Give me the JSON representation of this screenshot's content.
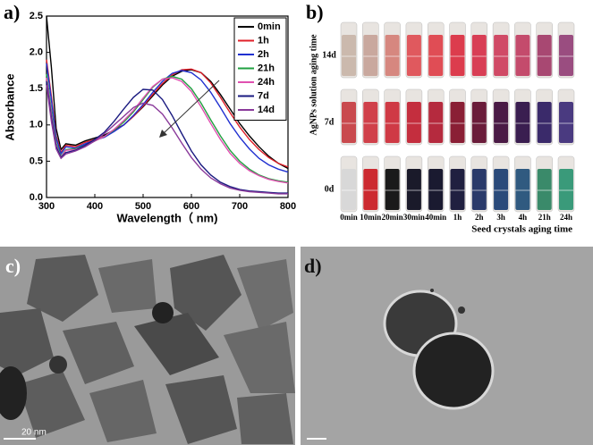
{
  "chart_data": {
    "type": "line",
    "panel_label": "a)",
    "xlabel": "Wavelength（ nm)",
    "ylabel": "Absorbance",
    "x": [
      300,
      310,
      320,
      330,
      340,
      360,
      380,
      400,
      420,
      440,
      460,
      480,
      500,
      520,
      540,
      560,
      580,
      600,
      620,
      640,
      660,
      680,
      700,
      720,
      740,
      760,
      780,
      800
    ],
    "xlim": [
      300,
      800
    ],
    "xticks": [
      300,
      400,
      500,
      600,
      700,
      800
    ],
    "ylim": [
      0,
      2.5
    ],
    "yticks": [
      {
        "value": 0,
        "label": "0.0"
      },
      0.5,
      {
        "value": 1,
        "label": "1.0"
      },
      1.5,
      {
        "value": 2,
        "label": "2.0"
      },
      2.5
    ],
    "legend": "upper right",
    "series": [
      {
        "name": "0min",
        "color": "#000000",
        "values": [
          2.5,
          1.8,
          0.95,
          0.66,
          0.74,
          0.72,
          0.78,
          0.82,
          0.86,
          0.93,
          1.0,
          1.12,
          1.25,
          1.4,
          1.55,
          1.67,
          1.74,
          1.76,
          1.72,
          1.6,
          1.42,
          1.22,
          1.02,
          0.85,
          0.7,
          0.57,
          0.47,
          0.4
        ]
      },
      {
        "name": "1h",
        "color": "#e0202a",
        "values": [
          1.9,
          1.4,
          0.85,
          0.62,
          0.72,
          0.7,
          0.76,
          0.8,
          0.84,
          0.92,
          1.0,
          1.12,
          1.26,
          1.42,
          1.57,
          1.69,
          1.76,
          1.77,
          1.72,
          1.58,
          1.38,
          1.17,
          0.97,
          0.8,
          0.66,
          0.55,
          0.47,
          0.42
        ]
      },
      {
        "name": "2h",
        "color": "#2030d0",
        "values": [
          1.85,
          1.35,
          0.82,
          0.6,
          0.7,
          0.68,
          0.74,
          0.79,
          0.83,
          0.91,
          1.0,
          1.13,
          1.28,
          1.45,
          1.6,
          1.71,
          1.75,
          1.72,
          1.62,
          1.45,
          1.24,
          1.02,
          0.83,
          0.67,
          0.54,
          0.45,
          0.39,
          0.35
        ]
      },
      {
        "name": "21h",
        "color": "#20a040",
        "values": [
          1.7,
          1.2,
          0.75,
          0.56,
          0.66,
          0.67,
          0.72,
          0.78,
          0.84,
          0.93,
          1.04,
          1.18,
          1.35,
          1.52,
          1.63,
          1.67,
          1.63,
          1.5,
          1.3,
          1.07,
          0.85,
          0.65,
          0.5,
          0.39,
          0.31,
          0.26,
          0.23,
          0.21
        ]
      },
      {
        "name": "24h",
        "color": "#e050b0",
        "values": [
          1.65,
          1.15,
          0.72,
          0.55,
          0.65,
          0.66,
          0.71,
          0.78,
          0.84,
          0.94,
          1.06,
          1.2,
          1.37,
          1.53,
          1.63,
          1.65,
          1.6,
          1.46,
          1.25,
          1.02,
          0.8,
          0.61,
          0.47,
          0.37,
          0.3,
          0.25,
          0.22,
          0.2
        ]
      },
      {
        "name": "7d",
        "color": "#1a1a80",
        "values": [
          1.6,
          1.1,
          0.7,
          0.55,
          0.62,
          0.65,
          0.72,
          0.8,
          0.9,
          1.05,
          1.22,
          1.38,
          1.49,
          1.48,
          1.35,
          1.13,
          0.88,
          0.64,
          0.45,
          0.31,
          0.21,
          0.15,
          0.11,
          0.09,
          0.08,
          0.07,
          0.06,
          0.06
        ]
      },
      {
        "name": "14d",
        "color": "#8a3a9a",
        "values": [
          1.55,
          1.05,
          0.67,
          0.54,
          0.6,
          0.64,
          0.7,
          0.78,
          0.88,
          1.0,
          1.12,
          1.24,
          1.3,
          1.27,
          1.15,
          0.96,
          0.75,
          0.55,
          0.39,
          0.27,
          0.19,
          0.13,
          0.1,
          0.08,
          0.07,
          0.06,
          0.05,
          0.05
        ]
      }
    ]
  },
  "panel_b": {
    "label": "b)",
    "y_title": "AgNPs solution aging time",
    "x_title": "Seed crystals aging time",
    "rows": [
      "14d",
      "7d",
      "0d"
    ],
    "columns": [
      "0min",
      "10min",
      "20min",
      "30min",
      "40min",
      "1h",
      "2h",
      "3h",
      "4h",
      "21h",
      "24h"
    ]
  },
  "panel_c": {
    "label": "c)",
    "scale_bar": "20 nm"
  },
  "panel_d": {
    "label": "d)"
  }
}
